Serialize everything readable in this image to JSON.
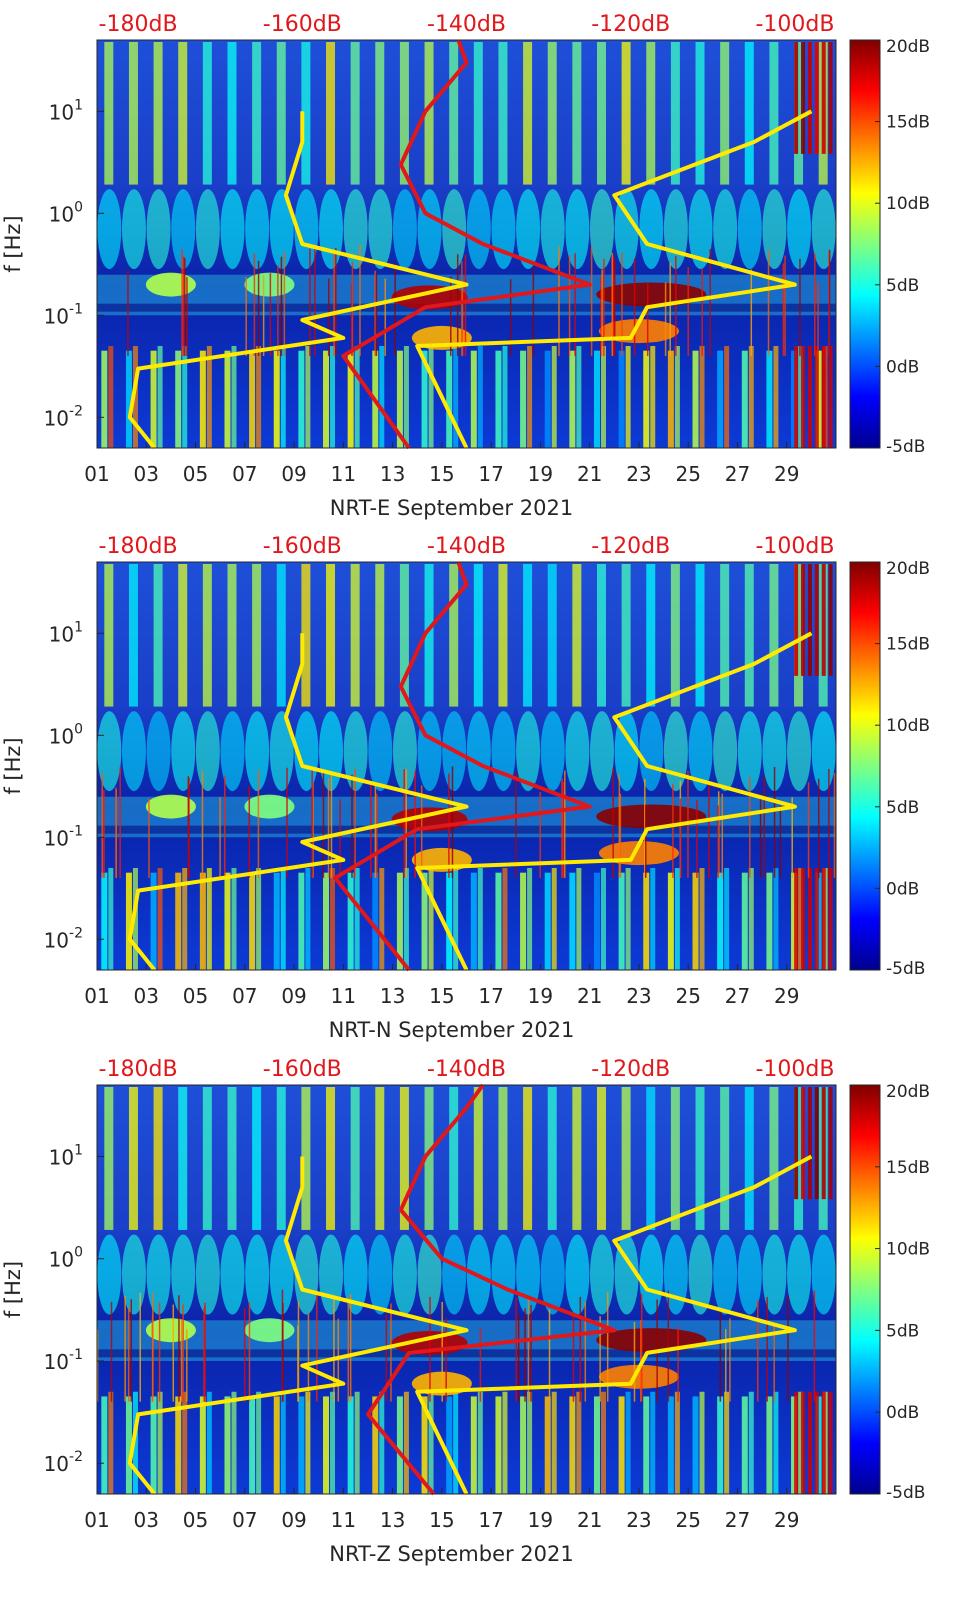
{
  "chart_data": [
    {
      "type": "heatmap",
      "title": "",
      "xlabel": "NRT-E September 2021",
      "ylabel": "f [Hz]",
      "x_ticks": [
        "01",
        "03",
        "05",
        "07",
        "09",
        "11",
        "13",
        "15",
        "17",
        "19",
        "21",
        "23",
        "25",
        "27",
        "29"
      ],
      "y_ticks": [
        "10^{-2}",
        "10^{-1}",
        "10^{0}",
        "10^{1}"
      ],
      "xlim_days": [
        1,
        31
      ],
      "ylim_hz": [
        0.005,
        50
      ],
      "colorbar": {
        "ticks": [
          "-5dB",
          "0dB",
          "5dB",
          "10dB",
          "15dB",
          "20dB"
        ],
        "range_db": [
          -5,
          20
        ]
      },
      "top_db_ticks": [
        "-180dB",
        "-160dB",
        "-140dB",
        "-120dB",
        "-100dB"
      ],
      "top_db_range": [
        -185,
        -95
      ],
      "lines": [
        {
          "name": "lower-noise-model-left",
          "color": "#ffea00",
          "db_offset": -182,
          "points": [
            [
              0.005,
              -178
            ],
            [
              0.01,
              -181
            ],
            [
              0.03,
              -180
            ],
            [
              0.06,
              -155
            ],
            [
              0.09,
              -160
            ],
            [
              0.2,
              -140
            ],
            [
              0.5,
              -160
            ],
            [
              1.5,
              -162
            ],
            [
              5,
              -160
            ],
            [
              10,
              -160
            ]
          ]
        },
        {
          "name": "psd-red",
          "color": "#e0171b",
          "points": [
            [
              0.005,
              -147
            ],
            [
              0.04,
              -155
            ],
            [
              0.12,
              -145
            ],
            [
              0.2,
              -125
            ],
            [
              0.5,
              -138
            ],
            [
              1,
              -145
            ],
            [
              3,
              -148
            ],
            [
              10,
              -145
            ],
            [
              30,
              -140
            ],
            [
              50,
              -141
            ]
          ]
        },
        {
          "name": "lower-noise-model-right",
          "color": "#ffea00",
          "points": [
            [
              0.005,
              -140
            ],
            [
              0.05,
              -146
            ],
            [
              0.06,
              -120
            ],
            [
              0.12,
              -118
            ],
            [
              0.2,
              -100
            ],
            [
              0.5,
              -118
            ],
            [
              1.5,
              -122
            ],
            [
              5,
              -105
            ],
            [
              10,
              -98
            ]
          ]
        }
      ]
    },
    {
      "type": "heatmap",
      "title": "",
      "xlabel": "NRT-N September 2021",
      "ylabel": "f [Hz]",
      "x_ticks": [
        "01",
        "03",
        "05",
        "07",
        "09",
        "11",
        "13",
        "15",
        "17",
        "19",
        "21",
        "23",
        "25",
        "27",
        "29"
      ],
      "y_ticks": [
        "10^{-2}",
        "10^{-1}",
        "10^{0}",
        "10^{1}"
      ],
      "xlim_days": [
        1,
        31
      ],
      "ylim_hz": [
        0.005,
        50
      ],
      "colorbar": {
        "ticks": [
          "-5dB",
          "0dB",
          "5dB",
          "10dB",
          "15dB",
          "20dB"
        ],
        "range_db": [
          -5,
          20
        ]
      },
      "top_db_ticks": [
        "-180dB",
        "-160dB",
        "-140dB",
        "-120dB",
        "-100dB"
      ],
      "top_db_range": [
        -185,
        -95
      ],
      "lines": [
        {
          "name": "lower-noise-model-left",
          "color": "#ffea00",
          "points": [
            [
              0.005,
              -178
            ],
            [
              0.01,
              -181
            ],
            [
              0.03,
              -180
            ],
            [
              0.06,
              -155
            ],
            [
              0.09,
              -160
            ],
            [
              0.2,
              -140
            ],
            [
              0.5,
              -160
            ],
            [
              1.5,
              -162
            ],
            [
              5,
              -160
            ],
            [
              10,
              -160
            ]
          ]
        },
        {
          "name": "psd-red",
          "color": "#e0171b",
          "points": [
            [
              0.005,
              -147
            ],
            [
              0.04,
              -156
            ],
            [
              0.12,
              -146
            ],
            [
              0.2,
              -125
            ],
            [
              0.5,
              -138
            ],
            [
              1,
              -145
            ],
            [
              3,
              -148
            ],
            [
              10,
              -145
            ],
            [
              30,
              -140
            ],
            [
              50,
              -141
            ]
          ]
        },
        {
          "name": "lower-noise-model-right",
          "color": "#ffea00",
          "points": [
            [
              0.005,
              -140
            ],
            [
              0.05,
              -146
            ],
            [
              0.06,
              -120
            ],
            [
              0.12,
              -118
            ],
            [
              0.2,
              -100
            ],
            [
              0.5,
              -118
            ],
            [
              1.5,
              -122
            ],
            [
              5,
              -105
            ],
            [
              10,
              -98
            ]
          ]
        }
      ]
    },
    {
      "type": "heatmap",
      "title": "",
      "xlabel": "NRT-Z September 2021",
      "ylabel": "f [Hz]",
      "x_ticks": [
        "01",
        "03",
        "05",
        "07",
        "09",
        "11",
        "13",
        "15",
        "17",
        "19",
        "21",
        "23",
        "25",
        "27",
        "29"
      ],
      "y_ticks": [
        "10^{-2}",
        "10^{-1}",
        "10^{0}",
        "10^{1}"
      ],
      "xlim_days": [
        1,
        31
      ],
      "ylim_hz": [
        0.005,
        50
      ],
      "colorbar": {
        "ticks": [
          "-5dB",
          "0dB",
          "5dB",
          "10dB",
          "15dB",
          "20dB"
        ],
        "range_db": [
          -5,
          20
        ]
      },
      "top_db_ticks": [
        "-180dB",
        "-160dB",
        "-140dB",
        "-120dB",
        "-100dB"
      ],
      "top_db_range": [
        -185,
        -95
      ],
      "lines": [
        {
          "name": "lower-noise-model-left",
          "color": "#ffea00",
          "points": [
            [
              0.005,
              -178
            ],
            [
              0.01,
              -181
            ],
            [
              0.03,
              -180
            ],
            [
              0.06,
              -155
            ],
            [
              0.09,
              -160
            ],
            [
              0.2,
              -140
            ],
            [
              0.5,
              -160
            ],
            [
              1.5,
              -162
            ],
            [
              5,
              -160
            ],
            [
              10,
              -160
            ]
          ]
        },
        {
          "name": "psd-red",
          "color": "#e0171b",
          "points": [
            [
              0.005,
              -144
            ],
            [
              0.03,
              -152
            ],
            [
              0.12,
              -147
            ],
            [
              0.2,
              -122
            ],
            [
              0.5,
              -135
            ],
            [
              1,
              -143
            ],
            [
              3,
              -148
            ],
            [
              10,
              -145
            ],
            [
              30,
              -140
            ],
            [
              50,
              -138
            ]
          ]
        },
        {
          "name": "lower-noise-model-right",
          "color": "#ffea00",
          "points": [
            [
              0.005,
              -140
            ],
            [
              0.05,
              -146
            ],
            [
              0.06,
              -120
            ],
            [
              0.12,
              -118
            ],
            [
              0.2,
              -100
            ],
            [
              0.5,
              -118
            ],
            [
              1.5,
              -122
            ],
            [
              5,
              -105
            ],
            [
              10,
              -98
            ]
          ]
        }
      ]
    }
  ],
  "colors": {
    "db_label": "#e0171b",
    "noise_model": "#ffea00",
    "psd_line": "#e0171b",
    "axis_text": "#262626"
  }
}
